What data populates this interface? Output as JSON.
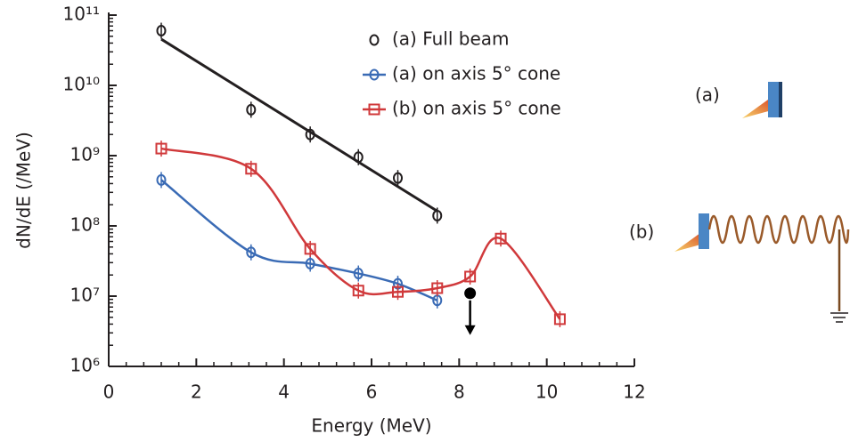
{
  "chart_data": {
    "type": "line",
    "xlabel": "Energy (MeV)",
    "ylabel": "dN/dE  (/MeV)",
    "xlim": [
      0,
      12
    ],
    "xticks": [
      0,
      2,
      4,
      6,
      8,
      10,
      12
    ],
    "ylim": [
      1000000,
      100000000000
    ],
    "yscale": "log",
    "yticks": [
      {
        "value": 1000000,
        "label": "10⁶"
      },
      {
        "value": 10000000,
        "label": "10⁷"
      },
      {
        "value": 100000000,
        "label": "10⁸"
      },
      {
        "value": 1000000000,
        "label": "10⁹"
      },
      {
        "value": 10000000000,
        "label": "10¹⁰"
      },
      {
        "value": 100000000000,
        "label": "10¹¹"
      }
    ],
    "series": [
      {
        "name": "(a) Full beam",
        "color": "#231f20",
        "marker": "circle",
        "line": "fit",
        "x": [
          1.2,
          3.25,
          4.6,
          5.7,
          6.6,
          7.5
        ],
        "values": [
          60000000000,
          4500000000,
          2000000000,
          950000000,
          480000000,
          140000000
        ]
      },
      {
        "name": "(a) on axis 5° cone",
        "color": "#3a6bb5",
        "marker": "circle",
        "line": "smooth",
        "x": [
          1.2,
          3.25,
          4.6,
          5.7,
          6.6,
          7.5
        ],
        "values": [
          450000000,
          42000000,
          29000000,
          21000000,
          15000000,
          8700000
        ]
      },
      {
        "name": "(b) on axis 5° cone",
        "color": "#d0393b",
        "marker": "square",
        "line": "smooth",
        "x": [
          1.2,
          3.25,
          4.6,
          5.7,
          6.6,
          7.5,
          8.25,
          8.95,
          10.3
        ],
        "values": [
          1260000000,
          650000000,
          47000000,
          12000000,
          11500000,
          13000000,
          19000000,
          66000000,
          4700000
        ]
      }
    ],
    "upper_limit": {
      "x": 8.25,
      "value": 11000000,
      "color": "#000000"
    },
    "schematic": {
      "a_label": "(a)",
      "b_label": "(b)"
    }
  }
}
